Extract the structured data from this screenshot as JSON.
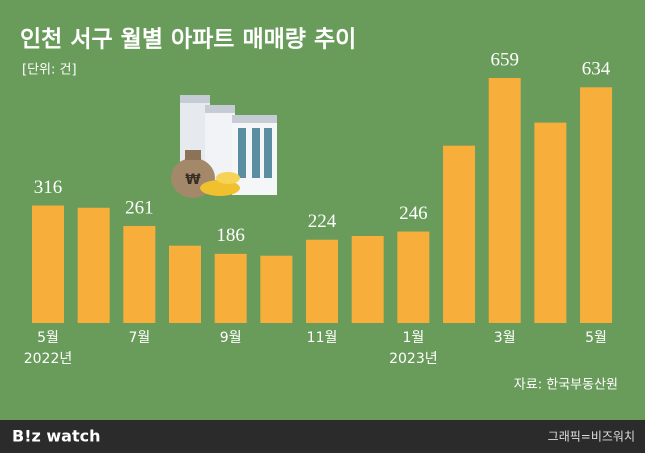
{
  "chart_data": {
    "type": "bar",
    "title": "인천 서구 월별 아파트 매매량 추이",
    "unit": "[단위: 건]",
    "source": "자료: 한국부동산원",
    "credit": "그래픽=비즈워치",
    "brand": "B!z watch",
    "color": "#f8ae3b",
    "categories": [
      "5월",
      null,
      "7월",
      null,
      "9월",
      null,
      "11월",
      null,
      "1월",
      null,
      "3월",
      null,
      "5월"
    ],
    "category_years": [
      "2022년",
      null,
      null,
      null,
      null,
      null,
      null,
      null,
      "2023년",
      null,
      null,
      null,
      null
    ],
    "values": [
      316,
      310,
      261,
      208,
      186,
      181,
      224,
      234,
      246,
      477,
      659,
      539,
      634
    ],
    "value_labels": [
      "316",
      null,
      "261",
      null,
      "186",
      null,
      "224",
      null,
      "246",
      null,
      "659",
      null,
      "634"
    ]
  }
}
